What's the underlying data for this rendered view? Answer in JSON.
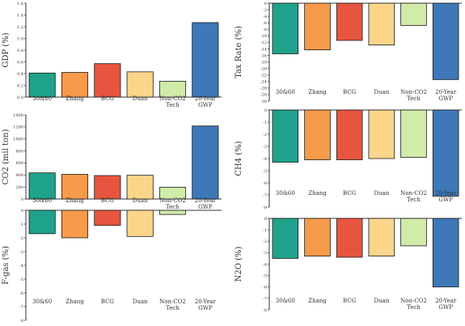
{
  "colors": {
    "axis": "#333333",
    "bar_outline": "#1a1a1a",
    "bars": [
      "#1ea38a",
      "#f79a4a",
      "#e8553f",
      "#fbd58a",
      "#d1eba8",
      "#3d78b9"
    ]
  },
  "chart_data": [
    {
      "type": "bar",
      "ylabel": "GDP (%)",
      "categories": [
        "30&60",
        "Zhang",
        "BCG",
        "Duan",
        "Non-CO2\nTech",
        "20-Year\nGWP"
      ],
      "values": [
        0.41,
        0.42,
        0.57,
        0.43,
        0.27,
        1.27
      ],
      "ylim": [
        0,
        1.6
      ],
      "yticks": [
        "0.0",
        "0.2",
        "0.4",
        "0.6",
        "0.8",
        "1.0",
        "1.2",
        "1.4",
        "1.6"
      ],
      "grid": false,
      "legend": "none"
    },
    {
      "type": "bar",
      "ylabel": "Tax Rate (%)",
      "categories": [
        "30&60",
        "Zhang",
        "BCG",
        "Duan",
        "Non-CO2\nTech",
        "20-Year\nGWP"
      ],
      "values": [
        -15.5,
        -14.3,
        -11.4,
        -12.8,
        -6.8,
        -23.4
      ],
      "ylim": [
        -30,
        0
      ],
      "yticks": [
        "0",
        "-2",
        "-4",
        "-6",
        "-8",
        "-10",
        "-12",
        "-14",
        "-16",
        "-18",
        "-20",
        "-22",
        "-24",
        "-26",
        "-28",
        "-30"
      ],
      "grid": false,
      "legend": "none"
    },
    {
      "type": "bar",
      "ylabel": "CO2 (mil ton)",
      "categories": [
        "30&60",
        "Zhang",
        "BCG",
        "Duan",
        "Non-CO2\nTech",
        "20-Year\nGWP"
      ],
      "values": [
        435,
        410,
        390,
        395,
        195,
        1215
      ],
      "ylim": [
        0,
        1400
      ],
      "yticks": [
        "0",
        "200",
        "400",
        "600",
        "800",
        "1000",
        "1200",
        "1400"
      ],
      "grid": false,
      "legend": "none"
    },
    {
      "type": "bar",
      "ylabel": "CH4 (%)",
      "categories": [
        "30&60",
        "Zhang",
        "BCG",
        "Duan",
        "Non-CO2\nTech",
        "20-Year\nGWP"
      ],
      "values": [
        -4.3,
        -4.1,
        -4.1,
        -4.0,
        -3.9,
        -7.1
      ],
      "ylim": [
        -8,
        0
      ],
      "yticks": [
        "0",
        "-1",
        "-2",
        "-3",
        "-4",
        "-5",
        "-6",
        "-7",
        "-8"
      ],
      "grid": false,
      "legend": "none"
    },
    {
      "type": "bar",
      "ylabel": "F-gas (%)",
      "categories": [
        "30&60",
        "Zhang",
        "BCG",
        "Duan",
        "Non-CO2\nTech",
        "20-Year\nGWP"
      ],
      "values": [
        -1.7,
        -2.0,
        -1.1,
        -1.9,
        -0.3,
        0
      ],
      "ylim": [
        -8,
        0
      ],
      "yticks": [
        "0",
        "-1",
        "-2",
        "-3",
        "-4",
        "-5",
        "-6",
        "-7",
        "-8"
      ],
      "grid": false,
      "legend": "none"
    },
    {
      "type": "bar",
      "ylabel": "N2O (%)",
      "categories": [
        "30&60",
        "Zhang",
        "BCG",
        "Duan",
        "Non-CO2\nTech",
        "20-Year\nGWP"
      ],
      "values": [
        -3.5,
        -3.3,
        -3.4,
        -3.3,
        -2.4,
        -6.0
      ],
      "ylim": [
        -8,
        0
      ],
      "yticks": [
        "0",
        "-1",
        "-2",
        "-3",
        "-4",
        "-5",
        "-6",
        "-7",
        "-8"
      ],
      "grid": false,
      "legend": "none"
    }
  ]
}
